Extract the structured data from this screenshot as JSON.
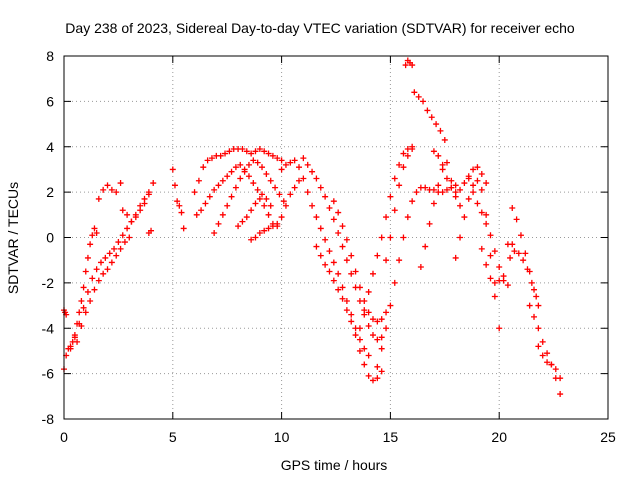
{
  "chart_data": {
    "type": "scatter",
    "title": "Day 238 of 2023, Sidereal Day-to-day VTEC variation (SDTVAR) for receiver echo",
    "xlabel": "GPS time / hours",
    "ylabel": "SDTVAR / TECUs",
    "xlim": [
      0,
      25
    ],
    "ylim": [
      -8,
      8
    ],
    "xticks": [
      0,
      5,
      10,
      15,
      20,
      25
    ],
    "yticks": [
      -8,
      -6,
      -4,
      -2,
      0,
      2,
      4,
      6,
      8
    ],
    "grid": true,
    "legend": "none",
    "marker": "+",
    "color": "#ff0000",
    "series": [
      {
        "x": [
          0.0,
          0.1,
          0.2,
          0.3,
          0.4,
          0.5,
          0.6,
          0.7,
          0.8,
          0.9,
          1.0,
          1.1,
          1.2,
          1.3,
          1.4,
          1.5
        ],
        "y": [
          -5.8,
          -5.2,
          -4.9,
          -4.8,
          -4.6,
          -4.3,
          -3.8,
          -3.3,
          -2.8,
          -2.2,
          -1.5,
          -0.9,
          -0.3,
          0.1,
          0.4,
          0.2
        ]
      },
      {
        "x": [
          0.0,
          0.05,
          0.1
        ],
        "y": [
          -3.2,
          -3.3,
          -3.4
        ]
      },
      {
        "x": [
          0.3,
          0.5,
          0.7,
          0.9,
          1.1,
          1.3,
          1.5,
          1.7,
          1.9,
          2.1,
          2.3,
          2.5,
          2.7,
          2.9,
          3.1,
          3.3,
          3.5,
          3.7,
          3.9,
          4.1
        ],
        "y": [
          -4.9,
          -4.4,
          -3.8,
          -3.1,
          -2.4,
          -1.8,
          -1.4,
          -1.1,
          -0.9,
          -0.7,
          -0.5,
          -0.2,
          0.1,
          0.4,
          0.7,
          1.0,
          1.4,
          1.7,
          2.0,
          2.4
        ]
      },
      {
        "x": [
          0.6,
          0.8,
          1.0,
          1.2,
          1.4,
          1.6,
          1.8,
          2.0,
          2.2,
          2.4,
          2.6,
          2.8,
          3.0
        ],
        "y": [
          -4.6,
          -3.9,
          -3.3,
          -2.8,
          -2.3,
          -1.9,
          -1.6,
          -1.4,
          -1.1,
          -0.8,
          -0.5,
          -0.2,
          0.0
        ]
      },
      {
        "x": [
          1.6,
          1.8,
          2.0,
          2.2,
          2.4,
          2.6
        ],
        "y": [
          1.7,
          2.1,
          2.3,
          2.1,
          2.0,
          2.4
        ]
      },
      {
        "x": [
          2.7,
          2.9,
          3.1,
          3.3,
          3.5,
          3.7,
          3.9
        ],
        "y": [
          1.2,
          1.0,
          0.7,
          0.9,
          1.2,
          1.5,
          1.9
        ]
      },
      {
        "x": [
          3.9,
          4.0
        ],
        "y": [
          0.2,
          0.3
        ]
      },
      {
        "x": [
          5.0,
          5.1,
          5.2,
          5.3,
          5.4,
          5.5
        ],
        "y": [
          3.0,
          2.3,
          1.6,
          1.4,
          1.1,
          0.4
        ]
      },
      {
        "x": [
          6.0,
          6.2,
          6.4,
          6.6,
          6.8,
          7.0,
          7.2,
          7.4,
          7.6,
          7.8,
          8.0,
          8.2,
          8.4,
          8.6,
          8.8,
          9.0,
          9.2,
          9.4,
          9.6,
          9.8,
          10.0
        ],
        "y": [
          2.0,
          2.5,
          3.1,
          3.4,
          3.5,
          3.6,
          3.6,
          3.7,
          3.8,
          3.9,
          3.9,
          3.9,
          3.8,
          3.7,
          3.8,
          3.9,
          3.8,
          3.7,
          3.6,
          3.5,
          3.4
        ]
      },
      {
        "x": [
          6.1,
          6.3,
          6.5,
          6.7,
          6.9,
          7.1,
          7.3,
          7.5,
          7.7,
          7.9,
          8.1,
          8.3,
          8.5,
          8.7,
          8.9,
          9.1,
          9.3,
          9.5
        ],
        "y": [
          1.0,
          1.2,
          1.5,
          1.8,
          2.1,
          2.3,
          2.5,
          2.7,
          2.9,
          3.1,
          3.2,
          3.0,
          2.7,
          2.4,
          2.1,
          1.9,
          1.7,
          1.4
        ]
      },
      {
        "x": [
          6.9,
          7.1,
          7.3,
          7.5,
          7.7,
          7.9,
          8.1,
          8.3,
          8.5,
          8.7,
          8.9,
          9.1,
          9.3,
          9.5,
          9.7,
          9.9,
          10.1
        ],
        "y": [
          0.2,
          0.6,
          1.0,
          1.4,
          1.8,
          2.2,
          2.6,
          2.9,
          3.2,
          3.4,
          3.3,
          3.1,
          2.8,
          2.5,
          2.2,
          1.9,
          1.6
        ]
      },
      {
        "x": [
          8.0,
          8.2,
          8.4,
          8.6,
          8.8,
          9.0,
          9.2,
          9.4,
          9.6,
          9.8,
          10.0,
          10.2,
          10.4,
          10.6,
          10.8
        ],
        "y": [
          0.5,
          0.7,
          0.9,
          1.2,
          1.5,
          1.7,
          1.4,
          1.0,
          0.6,
          0.5,
          0.9,
          1.4,
          1.9,
          2.2,
          2.5
        ]
      },
      {
        "x": [
          8.6,
          8.8,
          9.0,
          9.2,
          9.4,
          9.6,
          9.8
        ],
        "y": [
          -0.1,
          0.0,
          0.2,
          0.3,
          0.4,
          0.5,
          0.6
        ]
      },
      {
        "x": [
          10.0,
          10.2,
          10.4,
          10.6,
          10.8,
          11.0,
          11.2,
          11.4,
          11.6,
          11.8,
          12.0,
          12.2,
          12.4,
          12.6,
          12.8,
          13.0,
          13.2,
          13.4,
          13.6,
          13.8,
          14.0
        ],
        "y": [
          3.0,
          3.2,
          3.3,
          3.4,
          3.1,
          2.6,
          2.0,
          1.4,
          0.9,
          0.4,
          -0.1,
          -0.6,
          -1.1,
          -1.6,
          -2.2,
          -2.8,
          -3.4,
          -4.0,
          -4.5,
          -4.9,
          -5.2
        ]
      },
      {
        "x": [
          11.0,
          11.2,
          11.4,
          11.6,
          11.8,
          12.0,
          12.2,
          12.4,
          12.6,
          12.8,
          13.0,
          13.2,
          13.4,
          13.6,
          13.8,
          14.0,
          14.2,
          14.4,
          14.6
        ],
        "y": [
          3.5,
          3.2,
          2.9,
          2.6,
          2.2,
          1.8,
          1.3,
          0.8,
          0.2,
          -0.4,
          -1.0,
          -1.6,
          -2.2,
          -2.8,
          -3.4,
          -3.9,
          -4.3,
          -4.5,
          -4.4
        ]
      },
      {
        "x": [
          11.6,
          11.8,
          12.0,
          12.2,
          12.4,
          12.6,
          12.8,
          13.0,
          13.2,
          13.4,
          13.6,
          13.8,
          14.0,
          14.2,
          14.4,
          14.6
        ],
        "y": [
          -0.4,
          -0.8,
          -1.2,
          -1.5,
          -1.9,
          -2.3,
          -2.7,
          -3.2,
          -3.7,
          -4.3,
          -5.0,
          -5.6,
          -6.1,
          -6.3,
          -6.2,
          -5.9
        ]
      },
      {
        "x": [
          12.4,
          12.6,
          12.8,
          13.0,
          13.2,
          13.4,
          13.6,
          13.8,
          14.0,
          14.2,
          14.4,
          14.6,
          14.8
        ],
        "y": [
          1.6,
          1.1,
          0.5,
          -0.1,
          -0.8,
          -1.5,
          -2.2,
          -2.8,
          -3.3,
          -3.6,
          -3.7,
          -3.6,
          -3.3
        ]
      },
      {
        "x": [
          13.6,
          13.8,
          14.0,
          14.2,
          14.4,
          14.6,
          14.8,
          15.0,
          15.2,
          15.4,
          15.6,
          15.8,
          16.0
        ],
        "y": [
          -4.0,
          -3.2,
          -2.4,
          -1.6,
          -0.8,
          0.0,
          0.9,
          1.8,
          2.6,
          3.2,
          3.7,
          3.9,
          4.0
        ]
      },
      {
        "x": [
          14.4,
          14.6,
          14.8,
          15.0,
          15.2,
          15.4,
          15.6,
          15.8,
          16.0,
          16.2,
          16.4,
          16.6,
          16.8,
          17.0,
          17.2,
          17.4,
          17.6,
          17.8,
          18.0
        ],
        "y": [
          -5.7,
          -4.9,
          -4.0,
          -3.0,
          -2.0,
          -1.0,
          0.0,
          0.9,
          1.6,
          2.0,
          2.2,
          2.2,
          2.1,
          2.1,
          2.0,
          2.0,
          2.1,
          2.2,
          2.3
        ]
      },
      {
        "x": [
          14.8,
          15.0,
          15.2,
          15.4,
          15.6,
          15.8,
          16.0
        ],
        "y": [
          -1.0,
          0.0,
          1.2,
          2.3,
          3.1,
          3.6,
          3.9
        ]
      },
      {
        "x": [
          15.7,
          15.8,
          15.9,
          16.0
        ],
        "y": [
          7.6,
          7.8,
          7.7,
          7.6
        ]
      },
      {
        "x": [
          16.1,
          16.3,
          16.5,
          16.7,
          16.9,
          17.1,
          17.3,
          17.5
        ],
        "y": [
          6.4,
          6.2,
          6.0,
          5.6,
          5.3,
          5.0,
          4.7,
          4.3
        ]
      },
      {
        "x": [
          16.4,
          16.6,
          16.8,
          17.0,
          17.2,
          17.4,
          17.6,
          17.8,
          18.0,
          18.2
        ],
        "y": [
          -1.3,
          -0.4,
          0.6,
          1.5,
          2.3,
          3.0,
          3.3,
          2.5,
          1.8,
          1.4
        ]
      },
      {
        "x": [
          17.0,
          17.2,
          17.4,
          17.6,
          17.8,
          18.0,
          18.2,
          18.4,
          18.6,
          18.8,
          19.0,
          19.2,
          19.4
        ],
        "y": [
          3.8,
          3.6,
          3.2,
          2.6,
          2.2,
          2.0,
          2.1,
          2.4,
          2.7,
          3.0,
          3.1,
          2.8,
          2.4
        ]
      },
      {
        "x": [
          18.0,
          18.2,
          18.4,
          18.6,
          18.8,
          19.0,
          19.2,
          19.4,
          19.6,
          19.8,
          20.0
        ],
        "y": [
          -0.9,
          0.0,
          0.9,
          1.7,
          2.3,
          2.5,
          2.1,
          1.0,
          -0.8,
          -2.6,
          -4.0
        ]
      },
      {
        "x": [
          18.6,
          18.8,
          19.0,
          19.2,
          19.4,
          19.6,
          19.8,
          20.0,
          20.2,
          20.4
        ],
        "y": [
          2.6,
          2.0,
          1.5,
          1.1,
          0.6,
          0.1,
          -0.6,
          -1.3,
          -1.9,
          -2.1
        ]
      },
      {
        "x": [
          19.2,
          19.4,
          19.6,
          19.8,
          20.0,
          20.2
        ],
        "y": [
          -0.5,
          -1.2,
          -1.8,
          -2.0,
          -1.9,
          -1.7
        ]
      },
      {
        "x": [
          20.4,
          20.6
        ],
        "y": [
          -0.3,
          -0.3
        ]
      },
      {
        "x": [
          20.6,
          20.8,
          21.0,
          21.2,
          21.4,
          21.6,
          21.8
        ],
        "y": [
          1.3,
          0.8,
          0.1,
          -0.7,
          -1.5,
          -2.3,
          -3.0
        ]
      },
      {
        "x": [
          20.5,
          20.7,
          20.9,
          21.1,
          21.3,
          21.5,
          21.7
        ],
        "y": [
          -0.9,
          -0.6,
          -0.7,
          -1.0,
          -1.4,
          -2.0,
          -2.6
        ]
      },
      {
        "x": [
          21.4,
          21.6,
          21.8,
          22.0,
          22.2,
          22.4,
          22.6,
          22.8
        ],
        "y": [
          -3.0,
          -3.5,
          -4.0,
          -4.6,
          -5.1,
          -5.6,
          -6.2,
          -6.9
        ]
      },
      {
        "x": [
          21.8,
          22.0,
          22.2,
          22.4,
          22.6,
          22.8
        ],
        "y": [
          -4.8,
          -5.2,
          -5.5,
          -5.6,
          -5.8,
          -6.2
        ]
      }
    ]
  }
}
